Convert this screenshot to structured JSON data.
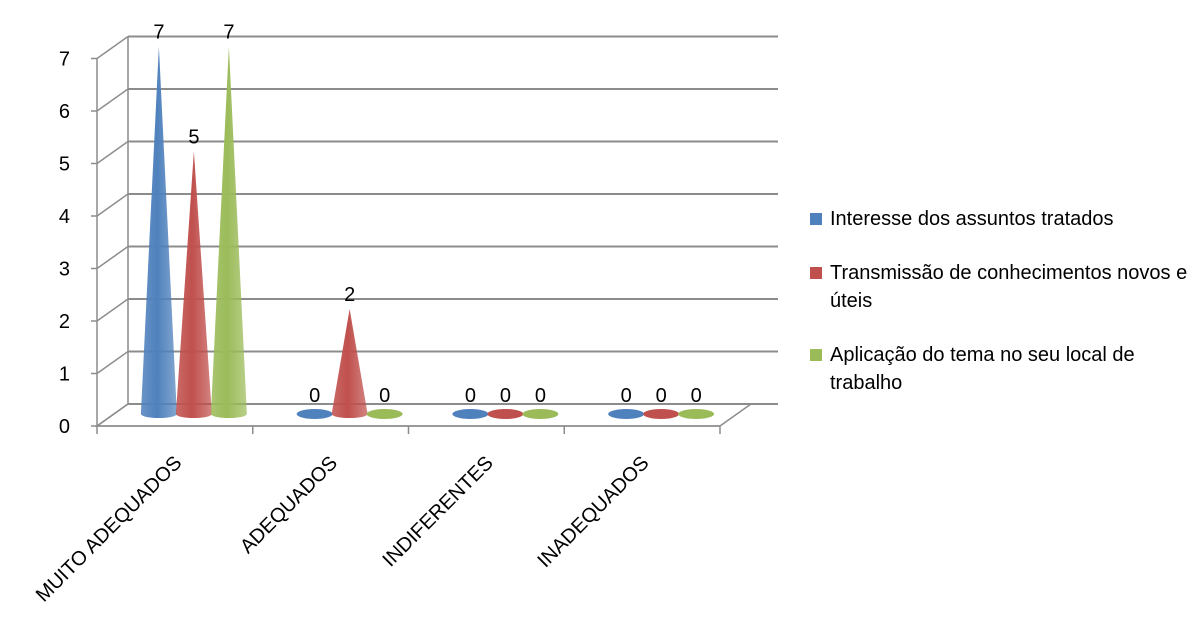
{
  "chart_data": {
    "type": "bar",
    "style": "3d-cone",
    "categories": [
      "MUITO ADEQUADOS",
      "ADEQUADOS",
      "INDIFERENTES",
      "INADEQUADOS"
    ],
    "series": [
      {
        "name": "Interesse dos assuntos tratados",
        "color": "#4f81bd",
        "values": [
          7,
          0,
          0,
          0
        ]
      },
      {
        "name": "Transmissão de conhecimentos novos e úteis",
        "color": "#c0504d",
        "values": [
          5,
          2,
          0,
          0
        ]
      },
      {
        "name": "Aplicação do tema no seu local de trabalho",
        "color": "#9bbb59",
        "values": [
          7,
          0,
          0,
          0
        ]
      }
    ],
    "ylim": [
      0,
      7
    ],
    "y_ticks": [
      "0",
      "1",
      "2",
      "3",
      "4",
      "5",
      "6",
      "7"
    ],
    "grid": true,
    "data_labels": true,
    "legend_position": "right"
  }
}
